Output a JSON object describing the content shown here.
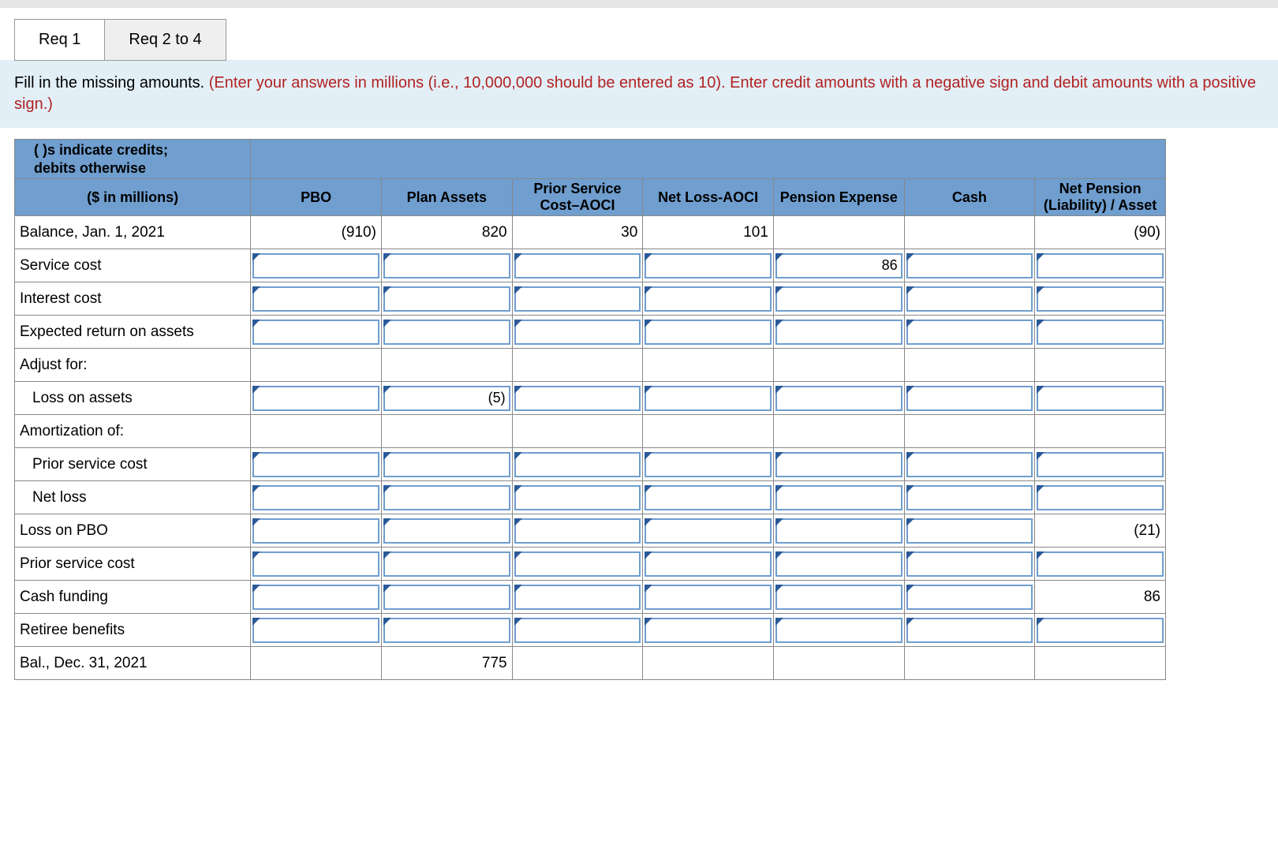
{
  "tabs": [
    {
      "label": "Req 1",
      "active": true
    },
    {
      "label": "Req 2 to 4",
      "active": false
    }
  ],
  "instruction": {
    "main": "Fill in the missing amounts. ",
    "hint": "(Enter your answers in millions (i.e., 10,000,000 should be entered as 10). Enter credit amounts with a negative sign and debit amounts with a positive sign.)"
  },
  "table": {
    "note_line1": "( )s indicate credits;",
    "note_line2": "debits otherwise",
    "unit_label": "($ in millions)",
    "columns": [
      "PBO",
      "Plan Assets",
      "Prior Service Cost–AOCI",
      "Net Loss-AOCI",
      "Pension Expense",
      "Cash",
      "Net Pension (Liability) / Asset"
    ],
    "rows": [
      {
        "label": "Balance, Jan. 1, 2021",
        "indent": false,
        "cells": [
          {
            "type": "plain",
            "value": "(910)"
          },
          {
            "type": "plain",
            "value": "820"
          },
          {
            "type": "plain",
            "value": "30"
          },
          {
            "type": "plain",
            "value": "101"
          },
          {
            "type": "plain",
            "value": ""
          },
          {
            "type": "plain",
            "value": ""
          },
          {
            "type": "plain",
            "value": "(90)"
          }
        ]
      },
      {
        "label": "Service cost",
        "indent": false,
        "cells": [
          {
            "type": "input",
            "value": ""
          },
          {
            "type": "input",
            "value": ""
          },
          {
            "type": "input",
            "value": ""
          },
          {
            "type": "input",
            "value": ""
          },
          {
            "type": "input",
            "value": "86"
          },
          {
            "type": "input",
            "value": ""
          },
          {
            "type": "input",
            "value": ""
          }
        ]
      },
      {
        "label": "Interest cost",
        "indent": false,
        "cells": [
          {
            "type": "input",
            "value": ""
          },
          {
            "type": "input",
            "value": ""
          },
          {
            "type": "input",
            "value": ""
          },
          {
            "type": "input",
            "value": ""
          },
          {
            "type": "input",
            "value": ""
          },
          {
            "type": "input",
            "value": ""
          },
          {
            "type": "input",
            "value": ""
          }
        ]
      },
      {
        "label": "Expected return on assets",
        "indent": false,
        "cells": [
          {
            "type": "input",
            "value": ""
          },
          {
            "type": "input",
            "value": ""
          },
          {
            "type": "input",
            "value": ""
          },
          {
            "type": "input",
            "value": ""
          },
          {
            "type": "input",
            "value": ""
          },
          {
            "type": "input",
            "value": ""
          },
          {
            "type": "input",
            "value": ""
          }
        ]
      },
      {
        "label": "Adjust for:",
        "indent": false,
        "cells": [
          {
            "type": "plain",
            "value": ""
          },
          {
            "type": "plain",
            "value": ""
          },
          {
            "type": "plain",
            "value": ""
          },
          {
            "type": "plain",
            "value": ""
          },
          {
            "type": "plain",
            "value": ""
          },
          {
            "type": "plain",
            "value": ""
          },
          {
            "type": "plain",
            "value": ""
          }
        ]
      },
      {
        "label": "Loss on assets",
        "indent": true,
        "cells": [
          {
            "type": "input",
            "value": ""
          },
          {
            "type": "input",
            "value": "(5)"
          },
          {
            "type": "input",
            "value": ""
          },
          {
            "type": "input",
            "value": ""
          },
          {
            "type": "input",
            "value": ""
          },
          {
            "type": "input",
            "value": ""
          },
          {
            "type": "input",
            "value": ""
          }
        ]
      },
      {
        "label": "Amortization of:",
        "indent": false,
        "cells": [
          {
            "type": "plain",
            "value": ""
          },
          {
            "type": "plain",
            "value": ""
          },
          {
            "type": "plain",
            "value": ""
          },
          {
            "type": "plain",
            "value": ""
          },
          {
            "type": "plain",
            "value": ""
          },
          {
            "type": "plain",
            "value": ""
          },
          {
            "type": "plain",
            "value": ""
          }
        ]
      },
      {
        "label": "Prior service cost",
        "indent": true,
        "cells": [
          {
            "type": "input",
            "value": ""
          },
          {
            "type": "input",
            "value": ""
          },
          {
            "type": "input",
            "value": ""
          },
          {
            "type": "input",
            "value": ""
          },
          {
            "type": "input",
            "value": ""
          },
          {
            "type": "input",
            "value": ""
          },
          {
            "type": "input",
            "value": ""
          }
        ]
      },
      {
        "label": "Net loss",
        "indent": true,
        "cells": [
          {
            "type": "input",
            "value": ""
          },
          {
            "type": "input",
            "value": ""
          },
          {
            "type": "input",
            "value": ""
          },
          {
            "type": "input",
            "value": ""
          },
          {
            "type": "input",
            "value": ""
          },
          {
            "type": "input",
            "value": ""
          },
          {
            "type": "input",
            "value": ""
          }
        ]
      },
      {
        "label": "Loss on PBO",
        "indent": false,
        "cells": [
          {
            "type": "input",
            "value": ""
          },
          {
            "type": "input",
            "value": ""
          },
          {
            "type": "input",
            "value": ""
          },
          {
            "type": "input",
            "value": ""
          },
          {
            "type": "input",
            "value": ""
          },
          {
            "type": "input",
            "value": ""
          },
          {
            "type": "plain",
            "value": "(21)"
          }
        ]
      },
      {
        "label": "Prior service cost",
        "indent": false,
        "cells": [
          {
            "type": "input",
            "value": ""
          },
          {
            "type": "input",
            "value": ""
          },
          {
            "type": "input",
            "value": ""
          },
          {
            "type": "input",
            "value": ""
          },
          {
            "type": "input",
            "value": ""
          },
          {
            "type": "input",
            "value": ""
          },
          {
            "type": "input",
            "value": ""
          }
        ]
      },
      {
        "label": "Cash funding",
        "indent": false,
        "cells": [
          {
            "type": "input",
            "value": ""
          },
          {
            "type": "input",
            "value": ""
          },
          {
            "type": "input",
            "value": ""
          },
          {
            "type": "input",
            "value": ""
          },
          {
            "type": "input",
            "value": ""
          },
          {
            "type": "input",
            "value": ""
          },
          {
            "type": "plain",
            "value": "86"
          }
        ]
      },
      {
        "label": "Retiree benefits",
        "indent": false,
        "cells": [
          {
            "type": "input",
            "value": ""
          },
          {
            "type": "input",
            "value": ""
          },
          {
            "type": "input",
            "value": ""
          },
          {
            "type": "input",
            "value": ""
          },
          {
            "type": "input",
            "value": ""
          },
          {
            "type": "input",
            "value": ""
          },
          {
            "type": "input",
            "value": ""
          }
        ]
      },
      {
        "label": "Bal., Dec. 31, 2021",
        "indent": false,
        "cells": [
          {
            "type": "plain",
            "value": ""
          },
          {
            "type": "plain",
            "value": "775"
          },
          {
            "type": "plain",
            "value": ""
          },
          {
            "type": "plain",
            "value": ""
          },
          {
            "type": "plain",
            "value": ""
          },
          {
            "type": "plain",
            "value": ""
          },
          {
            "type": "plain",
            "value": ""
          }
        ]
      }
    ]
  },
  "colors": {
    "header_bg": "#6f9ecf",
    "input_border": "#6f9ecf",
    "corner": "#2a5a99",
    "instruction_bg": "#e2eff7",
    "hint_color": "#b22222"
  }
}
